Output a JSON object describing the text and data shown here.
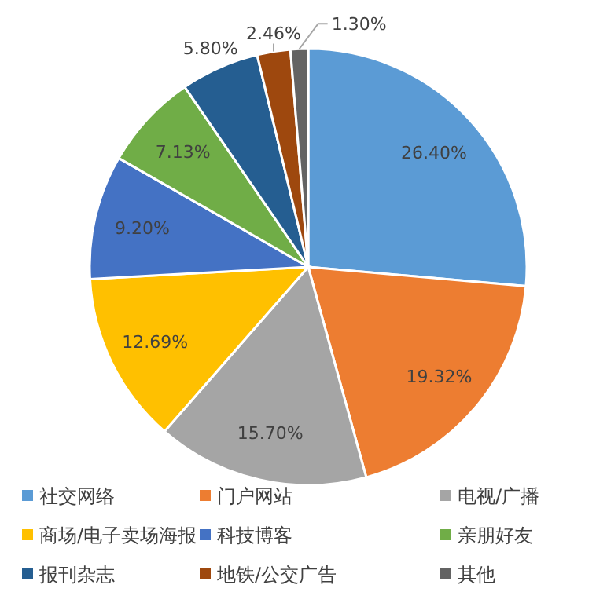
{
  "chart_data": {
    "type": "pie",
    "categories": [
      "社交网络",
      "门户网站",
      "电视/广播",
      "商场/电子卖场海报",
      "科技博客",
      "亲朋好友",
      "报刊杂志",
      "地铁/公交广告",
      "其他"
    ],
    "values": [
      26.4,
      19.32,
      15.7,
      12.69,
      9.2,
      7.13,
      5.8,
      2.46,
      1.3
    ],
    "value_labels": [
      "26.40%",
      "19.32%",
      "15.70%",
      "12.69%",
      "9.20%",
      "7.13%",
      "5.80%",
      "2.46%",
      "1.30%"
    ],
    "colors": [
      "#5b9bd5",
      "#ed7d31",
      "#a5a5a5",
      "#ffc000",
      "#4472c4",
      "#70ad47",
      "#255e91",
      "#9e480e",
      "#636363"
    ],
    "legend": "bottom"
  }
}
